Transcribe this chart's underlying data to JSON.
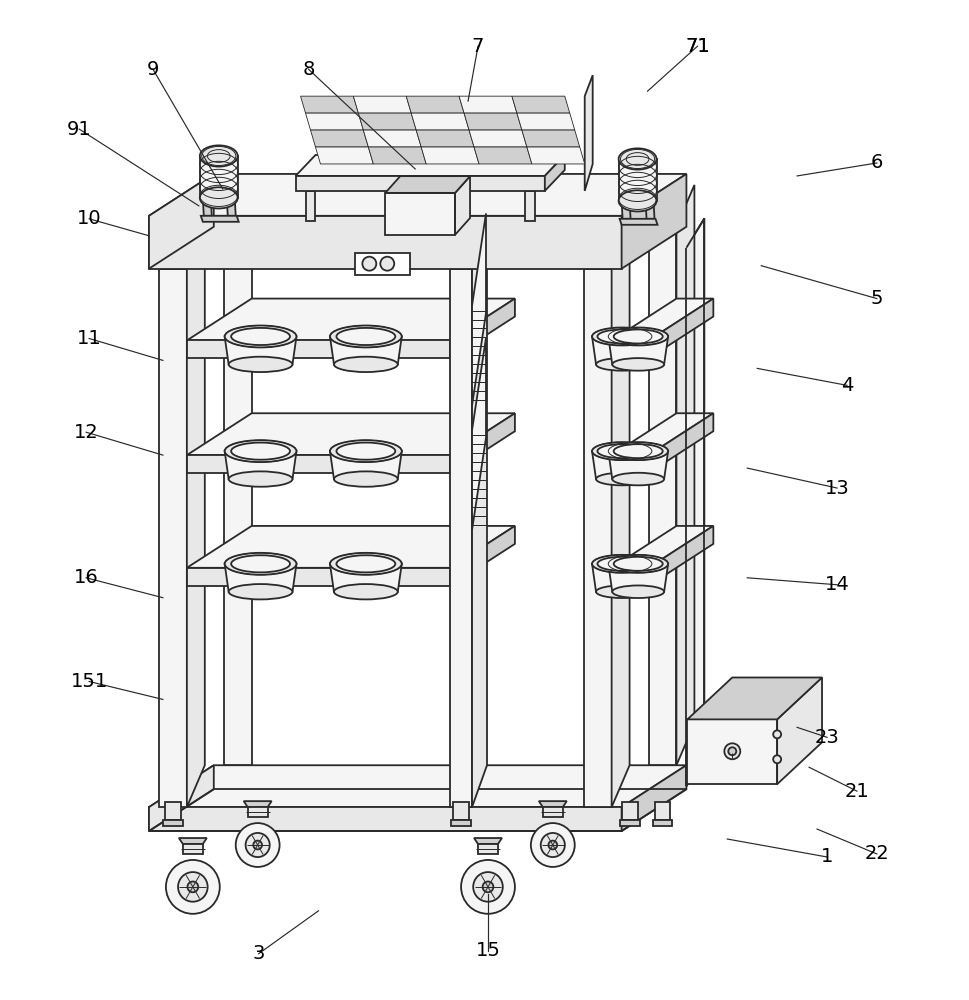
{
  "bg_color": "#ffffff",
  "lc": "#2a2a2a",
  "lw_main": 1.3,
  "lw_thin": 0.7,
  "fill_white": "#ffffff",
  "fill_light": "#f5f5f5",
  "fill_mid": "#e8e8e8",
  "fill_dark": "#d0d0d0",
  "fill_darker": "#b8b8b8",
  "labels": [
    [
      "9",
      152,
      68
    ],
    [
      "91",
      78,
      128
    ],
    [
      "8",
      308,
      68
    ],
    [
      "7",
      478,
      45
    ],
    [
      "71",
      698,
      45
    ],
    [
      "6",
      878,
      162
    ],
    [
      "10",
      88,
      218
    ],
    [
      "5",
      878,
      298
    ],
    [
      "4",
      848,
      385
    ],
    [
      "11",
      88,
      338
    ],
    [
      "12",
      85,
      432
    ],
    [
      "13",
      838,
      488
    ],
    [
      "16",
      85,
      578
    ],
    [
      "14",
      838,
      585
    ],
    [
      "151",
      88,
      682
    ],
    [
      "1",
      828,
      858
    ],
    [
      "3",
      258,
      955
    ],
    [
      "15",
      488,
      952
    ],
    [
      "21",
      858,
      792
    ],
    [
      "22",
      878,
      855
    ],
    [
      "23",
      828,
      738
    ],
    [
      "71",
      698,
      45
    ]
  ],
  "leader_lines": [
    [
      "9",
      152,
      68,
      222,
      188
    ],
    [
      "91",
      78,
      128,
      198,
      205
    ],
    [
      "8",
      308,
      68,
      415,
      168
    ],
    [
      "7",
      478,
      45,
      468,
      100
    ],
    [
      "71",
      698,
      45,
      648,
      90
    ],
    [
      "6",
      878,
      162,
      798,
      175
    ],
    [
      "10",
      88,
      218,
      148,
      235
    ],
    [
      "5",
      878,
      298,
      762,
      265
    ],
    [
      "4",
      848,
      385,
      758,
      368
    ],
    [
      "11",
      88,
      338,
      162,
      360
    ],
    [
      "12",
      85,
      432,
      162,
      455
    ],
    [
      "13",
      838,
      488,
      748,
      468
    ],
    [
      "16",
      85,
      578,
      162,
      598
    ],
    [
      "14",
      838,
      585,
      748,
      578
    ],
    [
      "151",
      88,
      682,
      162,
      700
    ],
    [
      "1",
      828,
      858,
      728,
      840
    ],
    [
      "3",
      258,
      955,
      318,
      912
    ],
    [
      "15",
      488,
      952,
      488,
      895
    ],
    [
      "21",
      858,
      792,
      810,
      768
    ],
    [
      "22",
      878,
      855,
      818,
      830
    ],
    [
      "23",
      828,
      738,
      798,
      728
    ]
  ]
}
